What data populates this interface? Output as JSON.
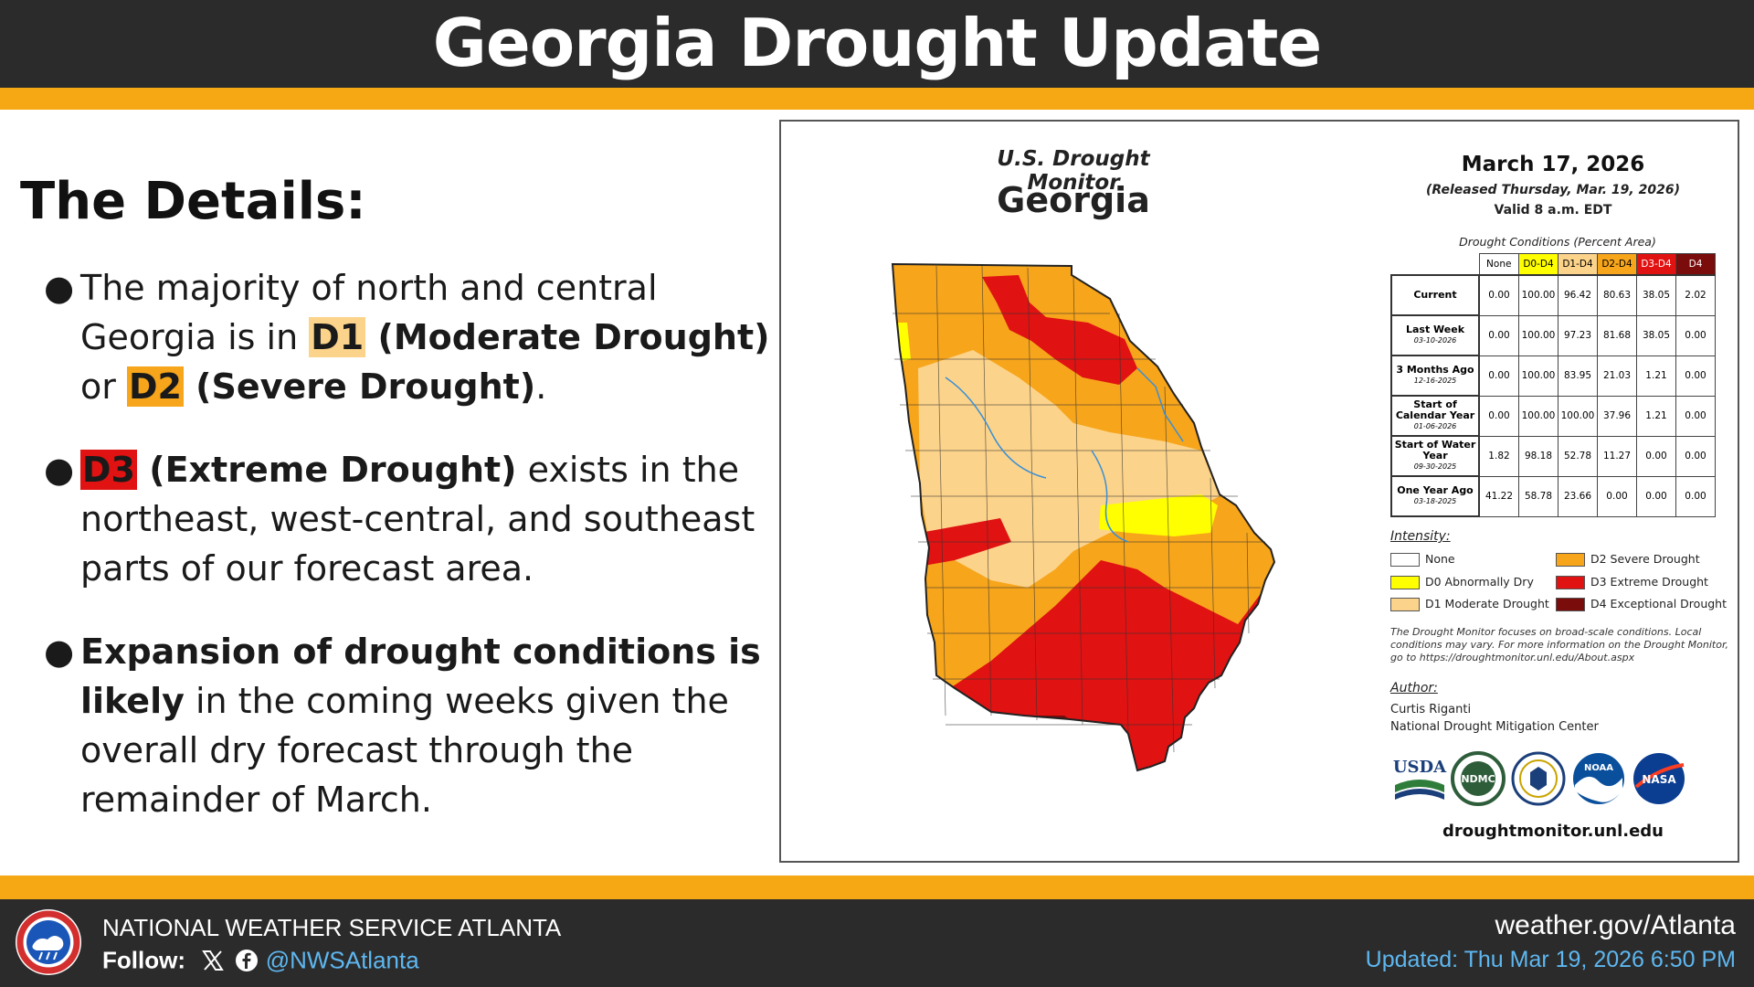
{
  "header": {
    "title": "Georgia Drought Update"
  },
  "details": {
    "title": "The Details:",
    "bullets": [
      {
        "pre": "The majority of north and central Georgia is in ",
        "d1": "D1",
        "d1_label": " (Moderate Drought)",
        "mid": " or ",
        "d2": "D2",
        "d2_label": " (Severe Drought)",
        "post": "."
      },
      {
        "d3": "D3",
        "d3_label": " (Extreme Drought)",
        "post": " exists in the northeast, west-central, and southeast parts of our forecast area."
      },
      {
        "bold": "Expansion of drought conditions is likely",
        "post": " in the coming weeks given the overall dry forecast through the remainder of March."
      }
    ]
  },
  "map": {
    "monitor_title": "U.S. Drought Monitor",
    "state": "Georgia",
    "date": "March 17, 2026",
    "released": "(Released Thursday, Mar. 19, 2026)",
    "valid": "Valid 8 a.m. EDT",
    "table_caption": "Drought Conditions (Percent Area)",
    "columns": [
      "None",
      "D0-D4",
      "D1-D4",
      "D2-D4",
      "D3-D4",
      "D4"
    ],
    "rows": [
      {
        "label": "Current",
        "sub": "",
        "values": [
          "0.00",
          "100.00",
          "96.42",
          "80.63",
          "38.05",
          "2.02"
        ]
      },
      {
        "label": "Last Week",
        "sub": "03-10-2026",
        "values": [
          "0.00",
          "100.00",
          "97.23",
          "81.68",
          "38.05",
          "0.00"
        ]
      },
      {
        "label": "3 Months Ago",
        "sub": "12-16-2025",
        "values": [
          "0.00",
          "100.00",
          "83.95",
          "21.03",
          "1.21",
          "0.00"
        ]
      },
      {
        "label": "Start of Calendar Year",
        "sub": "01-06-2026",
        "values": [
          "0.00",
          "100.00",
          "100.00",
          "37.96",
          "1.21",
          "0.00"
        ]
      },
      {
        "label": "Start of Water Year",
        "sub": "09-30-2025",
        "values": [
          "1.82",
          "98.18",
          "52.78",
          "11.27",
          "0.00",
          "0.00"
        ]
      },
      {
        "label": "One Year Ago",
        "sub": "03-18-2025",
        "values": [
          "41.22",
          "58.78",
          "23.66",
          "0.00",
          "0.00",
          "0.00"
        ]
      }
    ],
    "intensity_title": "Intensity:",
    "legend": [
      {
        "label": "None",
        "color": "#ffffff"
      },
      {
        "label": "D0 Abnormally Dry",
        "color": "#ffff00"
      },
      {
        "label": "D1 Moderate Drought",
        "color": "#fcd38a"
      },
      {
        "label": "D2 Severe Drought",
        "color": "#f7a51b"
      },
      {
        "label": "D3 Extreme Drought",
        "color": "#e01212"
      },
      {
        "label": "D4 Exceptional Drought",
        "color": "#7a0c0c"
      }
    ],
    "note": "The Drought Monitor focuses on broad-scale conditions. Local conditions may vary. For more information on the Drought Monitor, go to https://droughtmonitor.unl.edu/About.aspx",
    "author_title": "Author:",
    "author_name": "Curtis Riganti",
    "author_org": "National Drought Mitigation Center",
    "logos": {
      "usda": "USDA",
      "ndmc": "NDMC",
      "noaa": "NOAA",
      "nasa": "NASA"
    },
    "site": "droughtmonitor.unl.edu"
  },
  "footer": {
    "org": "NATIONAL WEATHER SERVICE ATLANTA",
    "follow_label": "Follow:",
    "handle": "@NWSAtlanta",
    "site": "weather.gov/Atlanta",
    "updated": "Updated: Thu Mar 19, 2026 6:50 PM"
  },
  "colors": {
    "header_bg": "#2b2b2b",
    "accent_stripe": "#f5a814",
    "handle_blue": "#5eb7f0"
  }
}
